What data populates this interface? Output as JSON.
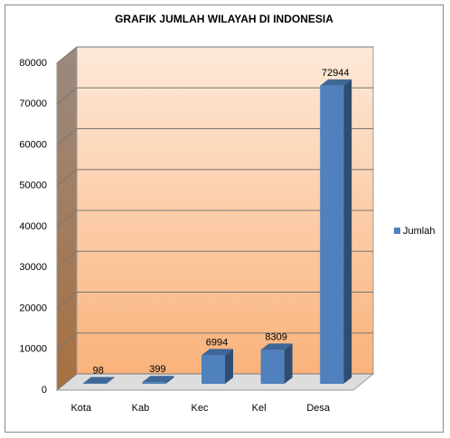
{
  "chart_data": {
    "type": "bar3d",
    "title": "GRAFIK JUMLAH WILAYAH DI INDONESIA",
    "categories": [
      "Kota",
      "Kab",
      "Kec",
      "Kel",
      "Desa"
    ],
    "series": [
      {
        "name": "Jumlah",
        "color": "#4f81bd",
        "values": [
          98,
          399,
          6994,
          8309,
          72944
        ]
      }
    ],
    "ylim": [
      0,
      80000
    ],
    "yticks": [
      0,
      10000,
      20000,
      30000,
      40000,
      50000,
      60000,
      70000,
      80000
    ],
    "grid": true,
    "legend": "right"
  }
}
